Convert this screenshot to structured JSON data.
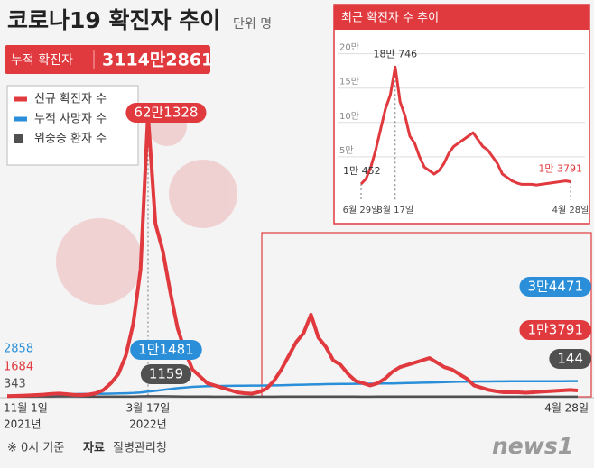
{
  "header": {
    "title": "코로나19 확진자 추이",
    "unit": "단위 명",
    "cumulative_label": "누적 확진자",
    "cumulative_value": "3114만2861"
  },
  "footer": {
    "note": "※ 0시 기준",
    "source_label": "자료",
    "source": "질병관리청",
    "logo": "news1"
  },
  "chart_data": [
    {
      "type": "line",
      "categories": [
        "11월 1일",
        null,
        null,
        null,
        null,
        null,
        null,
        null,
        null,
        null,
        null,
        null,
        null,
        null,
        null,
        null,
        null,
        null,
        null,
        "3월 17일",
        null,
        null,
        null,
        null,
        null,
        null,
        null,
        null,
        null,
        null,
        null,
        null,
        null,
        null,
        null,
        null,
        null,
        null,
        null,
        null,
        null,
        null,
        null,
        null,
        null,
        null,
        null,
        null,
        null,
        null,
        null,
        null,
        null,
        null,
        null,
        null,
        null,
        null,
        null,
        null,
        null,
        null,
        null,
        null,
        null,
        null,
        null,
        null,
        null,
        null,
        null,
        null,
        null,
        null,
        null,
        null,
        null,
        "4월 28일"
      ],
      "category_sublabels": [
        "2021년",
        null,
        null,
        null,
        null,
        null,
        null,
        null,
        null,
        null,
        null,
        null,
        null,
        null,
        null,
        null,
        null,
        null,
        null,
        "2022년",
        null,
        null,
        null,
        null,
        null,
        null,
        null,
        null,
        null,
        null,
        null,
        null,
        null,
        null,
        null,
        null,
        null,
        null,
        null,
        null,
        null,
        null,
        null,
        null,
        null,
        null,
        null,
        null,
        null,
        null,
        null,
        null,
        null,
        null,
        null,
        null,
        null,
        null,
        null,
        null,
        null,
        null,
        null,
        null,
        null,
        null,
        null,
        null,
        null,
        null,
        null,
        null,
        null,
        null,
        null,
        null,
        null,
        null
      ],
      "ylim": [
        0,
        650000
      ],
      "series": [
        {
          "name": "신규 확진자 수",
          "color": "#e0393e",
          "values": [
            1684,
            2000,
            2500,
            3200,
            4000,
            5000,
            6500,
            7200,
            6000,
            4500,
            4000,
            5000,
            8000,
            15000,
            30000,
            50000,
            90000,
            160000,
            280000,
            621328,
            380000,
            320000,
            230000,
            150000,
            100000,
            60000,
            45000,
            30000,
            25000,
            20000,
            15000,
            10000,
            8000,
            7000,
            10452,
            18000,
            35000,
            60000,
            90000,
            120000,
            140000,
            180746,
            130000,
            110000,
            80000,
            70000,
            50000,
            35000,
            30000,
            25000,
            30000,
            40000,
            55000,
            65000,
            70000,
            75000,
            80000,
            85000,
            75000,
            65000,
            60000,
            50000,
            40000,
            25000,
            20000,
            15000,
            12000,
            10000,
            10000,
            10000,
            9000,
            10000,
            11000,
            12000,
            13000,
            14000,
            15000,
            13791
          ],
          "value_labels": [
            "1684",
            null,
            null,
            null,
            null,
            null,
            null,
            null,
            null,
            null,
            null,
            null,
            null,
            null,
            null,
            null,
            null,
            null,
            null,
            "62만1328",
            null,
            null,
            null,
            null,
            null,
            null,
            null,
            null,
            null,
            null,
            null,
            null,
            null,
            null,
            null,
            null,
            null,
            null,
            null,
            null,
            null,
            null,
            null,
            null,
            null,
            null,
            null,
            null,
            null,
            null,
            null,
            null,
            null,
            null,
            null,
            null,
            null,
            null,
            null,
            null,
            null,
            null,
            null,
            null,
            null,
            null,
            null,
            null,
            null,
            null,
            null,
            null,
            null,
            null,
            null,
            null,
            null,
            "1만3791"
          ]
        },
        {
          "name": "누적 사망자 수",
          "color": "#2a8fd8",
          "values": [
            2858,
            3000,
            3200,
            3500,
            3800,
            4200,
            4700,
            5200,
            5600,
            5900,
            6200,
            6400,
            6600,
            6800,
            7000,
            7300,
            7700,
            8300,
            9500,
            11481,
            13000,
            15000,
            17000,
            19000,
            20500,
            21700,
            22500,
            23100,
            23500,
            23800,
            24000,
            24200,
            24400,
            24500,
            24600,
            24800,
            25000,
            25300,
            25700,
            26100,
            26600,
            27000,
            27400,
            27700,
            28000,
            28200,
            28400,
            28600,
            28700,
            28800,
            28900,
            29100,
            29400,
            29700,
            30100,
            30500,
            31000,
            31400,
            31800,
            32200,
            32600,
            33000,
            33200,
            33400,
            33600,
            33700,
            33800,
            33900,
            34000,
            34050,
            34100,
            34150,
            34200,
            34250,
            34300,
            34350,
            34400,
            34471
          ],
          "value_labels": [
            "2858",
            null,
            null,
            null,
            null,
            null,
            null,
            null,
            null,
            null,
            null,
            null,
            null,
            null,
            null,
            null,
            null,
            null,
            null,
            "1만1481",
            null,
            null,
            null,
            null,
            null,
            null,
            null,
            null,
            null,
            null,
            null,
            null,
            null,
            null,
            null,
            null,
            null,
            null,
            null,
            null,
            null,
            null,
            null,
            null,
            null,
            null,
            null,
            null,
            null,
            null,
            null,
            null,
            null,
            null,
            null,
            null,
            null,
            null,
            null,
            null,
            null,
            null,
            null,
            null,
            null,
            null,
            null,
            null,
            null,
            null,
            null,
            null,
            null,
            null,
            null,
            null,
            null,
            "3만4471"
          ]
        },
        {
          "name": "위중증 환자 수",
          "color": "#505050",
          "values": [
            343,
            400,
            500,
            600,
            700,
            800,
            850,
            1000,
            1100,
            1000,
            800,
            600,
            400,
            300,
            300,
            350,
            450,
            650,
            900,
            1159,
            1250,
            1200,
            1000,
            800,
            600,
            450,
            350,
            300,
            250,
            200,
            150,
            120,
            100,
            100,
            100,
            150,
            250,
            350,
            450,
            500,
            550,
            550,
            500,
            450,
            400,
            350,
            300,
            300,
            280,
            280,
            300,
            350,
            400,
            450,
            500,
            530,
            550,
            580,
            600,
            580,
            550,
            500,
            450,
            400,
            350,
            300,
            250,
            200,
            180,
            170,
            160,
            160,
            150,
            150,
            150,
            145,
            145,
            144
          ],
          "value_labels": [
            "343",
            null,
            null,
            null,
            null,
            null,
            null,
            null,
            null,
            null,
            null,
            null,
            null,
            null,
            null,
            null,
            null,
            null,
            null,
            "1159",
            null,
            null,
            null,
            null,
            null,
            null,
            null,
            null,
            null,
            null,
            null,
            null,
            null,
            null,
            null,
            null,
            null,
            null,
            null,
            null,
            null,
            null,
            null,
            null,
            null,
            null,
            null,
            null,
            null,
            null,
            null,
            null,
            null,
            null,
            null,
            null,
            null,
            null,
            null,
            null,
            null,
            null,
            null,
            null,
            null,
            null,
            null,
            null,
            null,
            null,
            null,
            null,
            null,
            null,
            null,
            null,
            null,
            "144"
          ]
        }
      ]
    },
    {
      "type": "line",
      "title": "최근 확진자 수 추이",
      "categories": [
        "6월 29일",
        null,
        null,
        null,
        null,
        null,
        null,
        "8월 17일",
        null,
        null,
        null,
        null,
        null,
        null,
        null,
        null,
        null,
        null,
        null,
        null,
        null,
        null,
        null,
        null,
        null,
        null,
        null,
        null,
        null,
        null,
        null,
        null,
        null,
        null,
        null,
        null,
        null,
        null,
        null,
        null,
        null,
        null,
        null,
        "4월 28일"
      ],
      "ylim": [
        0,
        210000
      ],
      "yticks": [
        {
          "value": 50000,
          "label": "5만"
        },
        {
          "value": 100000,
          "label": "10만"
        },
        {
          "value": 150000,
          "label": "15만"
        },
        {
          "value": 200000,
          "label": "20만"
        }
      ],
      "grid": true,
      "series": [
        {
          "name": "신규 확진자 수",
          "color": "#e0393e",
          "values": [
            10452,
            18000,
            35000,
            60000,
            90000,
            120000,
            140000,
            180746,
            130000,
            110000,
            80000,
            70000,
            50000,
            35000,
            30000,
            25000,
            30000,
            40000,
            55000,
            65000,
            70000,
            75000,
            80000,
            85000,
            75000,
            65000,
            60000,
            50000,
            40000,
            25000,
            20000,
            15000,
            12000,
            10000,
            10000,
            10000,
            9000,
            10000,
            11000,
            12000,
            13000,
            14000,
            15000,
            13791
          ],
          "value_labels": [
            "1만 452",
            null,
            null,
            null,
            null,
            null,
            null,
            "18만 746",
            null,
            null,
            null,
            null,
            null,
            null,
            null,
            null,
            null,
            null,
            null,
            null,
            null,
            null,
            null,
            null,
            null,
            null,
            null,
            null,
            null,
            null,
            null,
            null,
            null,
            null,
            null,
            null,
            null,
            null,
            null,
            null,
            null,
            null,
            null,
            "1만 3791"
          ]
        }
      ]
    }
  ]
}
